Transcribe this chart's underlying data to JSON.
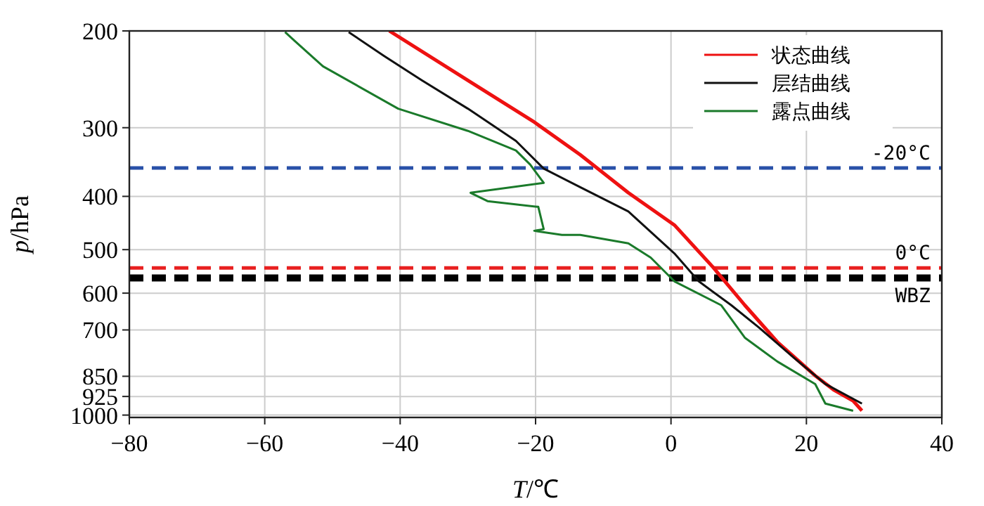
{
  "chart_data": {
    "type": "line",
    "xlabel": "*T*/℃",
    "ylabel": "*p*/hPa",
    "xlim": [
      -80,
      40
    ],
    "xticks": [
      -80,
      -60,
      -40,
      -20,
      0,
      20,
      40
    ],
    "ylim": [
      1010,
      200
    ],
    "yticks": [
      200,
      300,
      400,
      500,
      600,
      700,
      850,
      925,
      1000
    ],
    "log": "y",
    "grid": true,
    "legend": "top right",
    "line_style": "solid",
    "marker": "none",
    "series": [
      {
        "name": "状态曲线",
        "color": "#ee1111",
        "x": [
          -41.6,
          -30.0,
          -20.2,
          -13.4,
          -6.3,
          0.5,
          6.2,
          10.9,
          15.7,
          21.3,
          24.0,
          26.9,
          28.2
        ],
        "values": [
          200,
          246,
          293,
          336,
          394,
          451,
          538,
          631,
          736,
          848,
          899,
          942,
          982
        ]
      },
      {
        "name": "层结曲线",
        "color": "#111111",
        "x": [
          -47.6,
          -42.4,
          -36.8,
          -30.0,
          -22.9,
          -18.8,
          -13.4,
          -6.3,
          0.5,
          4.1,
          8.9,
          13.0,
          17.8,
          22.8,
          28.2
        ],
        "values": [
          201,
          222,
          246,
          277,
          317,
          356,
          385,
          426,
          508,
          571,
          631,
          693,
          780,
          878,
          953
        ]
      },
      {
        "name": "露点曲线",
        "color": "#1a7a2a",
        "x": [
          -57.0,
          -55.5,
          -51.4,
          -40.3,
          -30.0,
          -22.9,
          -20.8,
          -18.8,
          -29.6,
          -27.1,
          -19.6,
          -18.8,
          -20.2,
          -16.1,
          -13.4,
          -6.3,
          -3.0,
          0.5,
          7.4,
          10.9,
          15.7,
          21.3,
          22.8,
          26.9
        ],
        "values": [
          201,
          209,
          232,
          277,
          304,
          330,
          350,
          378,
          394,
          408,
          418,
          459,
          462,
          470,
          470,
          487,
          517,
          571,
          631,
          723,
          799,
          878,
          953,
          982
        ]
      }
    ],
    "ref_lines": [
      {
        "axis": "y",
        "value": 355,
        "label": "-20°C",
        "color": "#2850a8",
        "line_style": "dashed"
      },
      {
        "axis": "y",
        "value": 540,
        "label": "0°C",
        "color": "#e82020",
        "line_style": "dashed"
      },
      {
        "axis": "y",
        "value": 563,
        "label": "WBZ",
        "color": "#000000",
        "line_style": "dashed"
      }
    ]
  }
}
